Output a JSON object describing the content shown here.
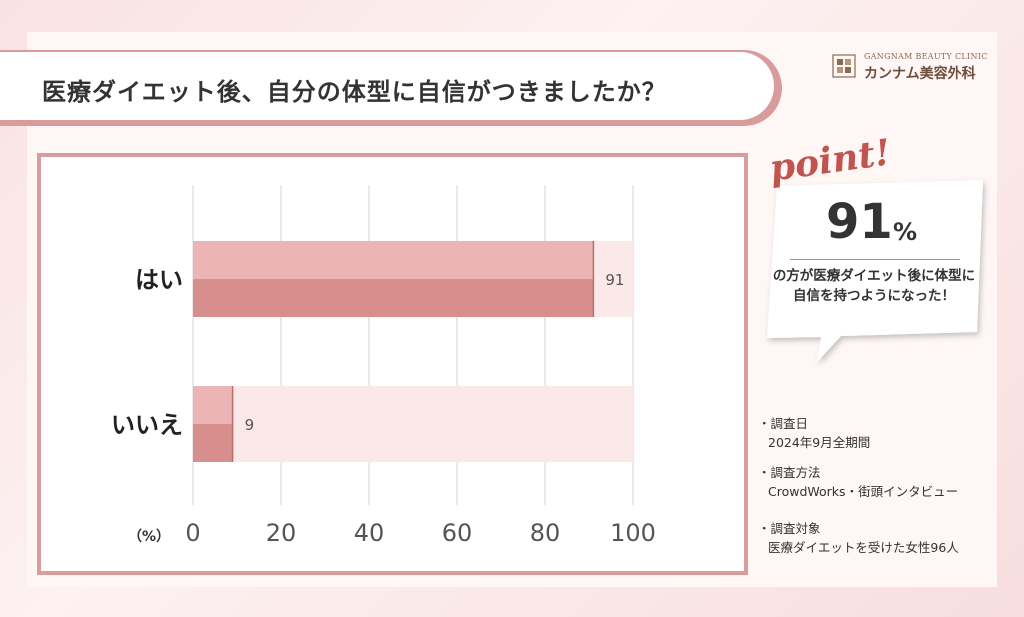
{
  "title": "医療ダイエット後、自分の体型に自信がつきましたか？",
  "logo": {
    "en": "GANGNAM BEAUTY CLINIC",
    "jp": "カンナム美容外科"
  },
  "colors": {
    "bar_dark": "#d98e8e",
    "bar_light": "#ebb5b5",
    "track": "#fbe9e9",
    "frame": "#d99c9c",
    "accent": "#c0544f"
  },
  "chart_data": {
    "type": "bar",
    "orientation": "horizontal",
    "categories": [
      "はい",
      "いいえ"
    ],
    "values": [
      91,
      9
    ],
    "value_labels": [
      "91",
      "9"
    ],
    "xlim": [
      0,
      100
    ],
    "ticks": [
      "0",
      "20",
      "40",
      "60",
      "80",
      "100"
    ],
    "tick_values": [
      0,
      20,
      40,
      60,
      80,
      100
    ],
    "unit_label": "（%）",
    "grid": true
  },
  "point": {
    "label": "point!",
    "number": "91",
    "unit": "%",
    "text": "の方が医療ダイエット後に体型に自信を持つようになった！"
  },
  "info": [
    {
      "heading": "・調査日",
      "value": "2024年9月全期間"
    },
    {
      "heading": "・調査方法",
      "value": "CrowdWorks・街頭インタビュー"
    },
    {
      "heading": "・調査対象",
      "value": "医療ダイエットを受けた女性96人"
    }
  ]
}
